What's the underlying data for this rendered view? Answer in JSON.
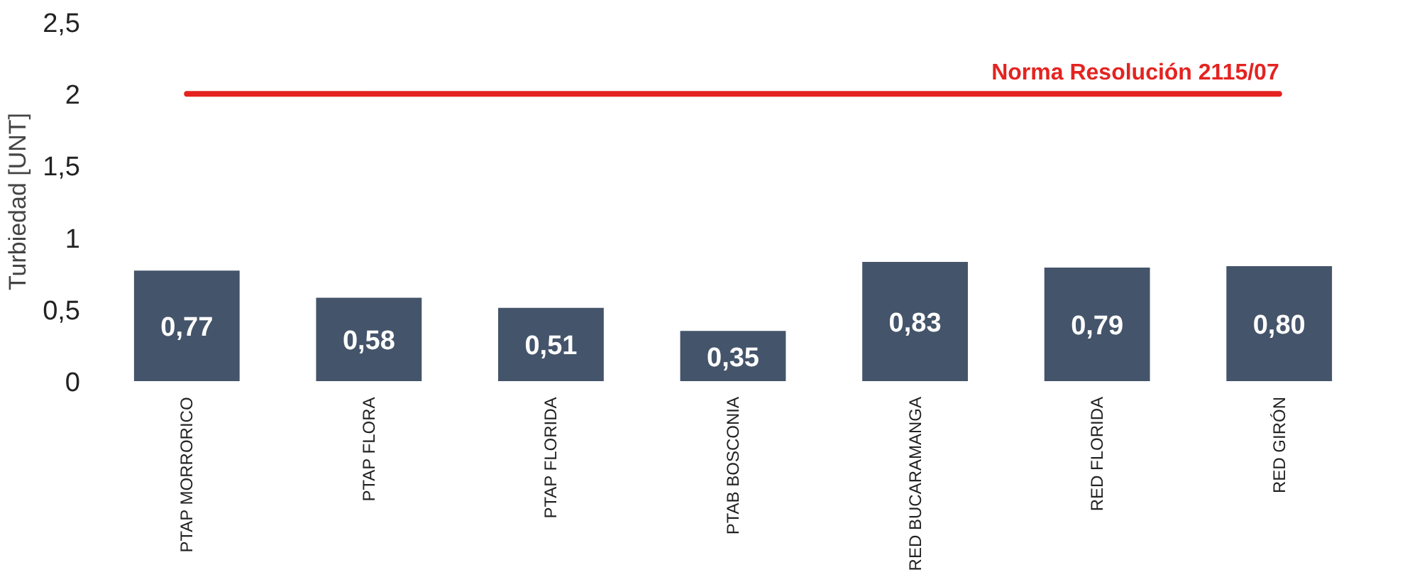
{
  "chart_data": {
    "type": "bar",
    "ylabel": "Turbiedad [UNT]",
    "categories": [
      "PTAP MORRORICO",
      "PTAP FLORA",
      "PTAP FLORIDA",
      "PTAB BOSCONIA",
      "RED BUCARAMANGA",
      "RED FLORIDA",
      "RED GIRÓN"
    ],
    "values": [
      0.77,
      0.58,
      0.51,
      0.35,
      0.83,
      0.79,
      0.8
    ],
    "value_labels": [
      "0,77",
      "0,58",
      "0,51",
      "0,35",
      "0,83",
      "0,79",
      "0,80"
    ],
    "color": "#44546a",
    "ylim": [
      0,
      2.5
    ],
    "yticks": [
      0,
      {
        "value": 0.5,
        "label": "0,5"
      },
      1,
      {
        "value": 1.5,
        "label": "1,5"
      },
      2,
      {
        "value": 2.5,
        "label": "2,5"
      }
    ],
    "ref_lines": [
      {
        "axis": "y",
        "value": 2,
        "label": "Norma Resolución 2115/07",
        "color": "#e42320",
        "line_style": "solid"
      }
    ],
    "grid": false
  }
}
